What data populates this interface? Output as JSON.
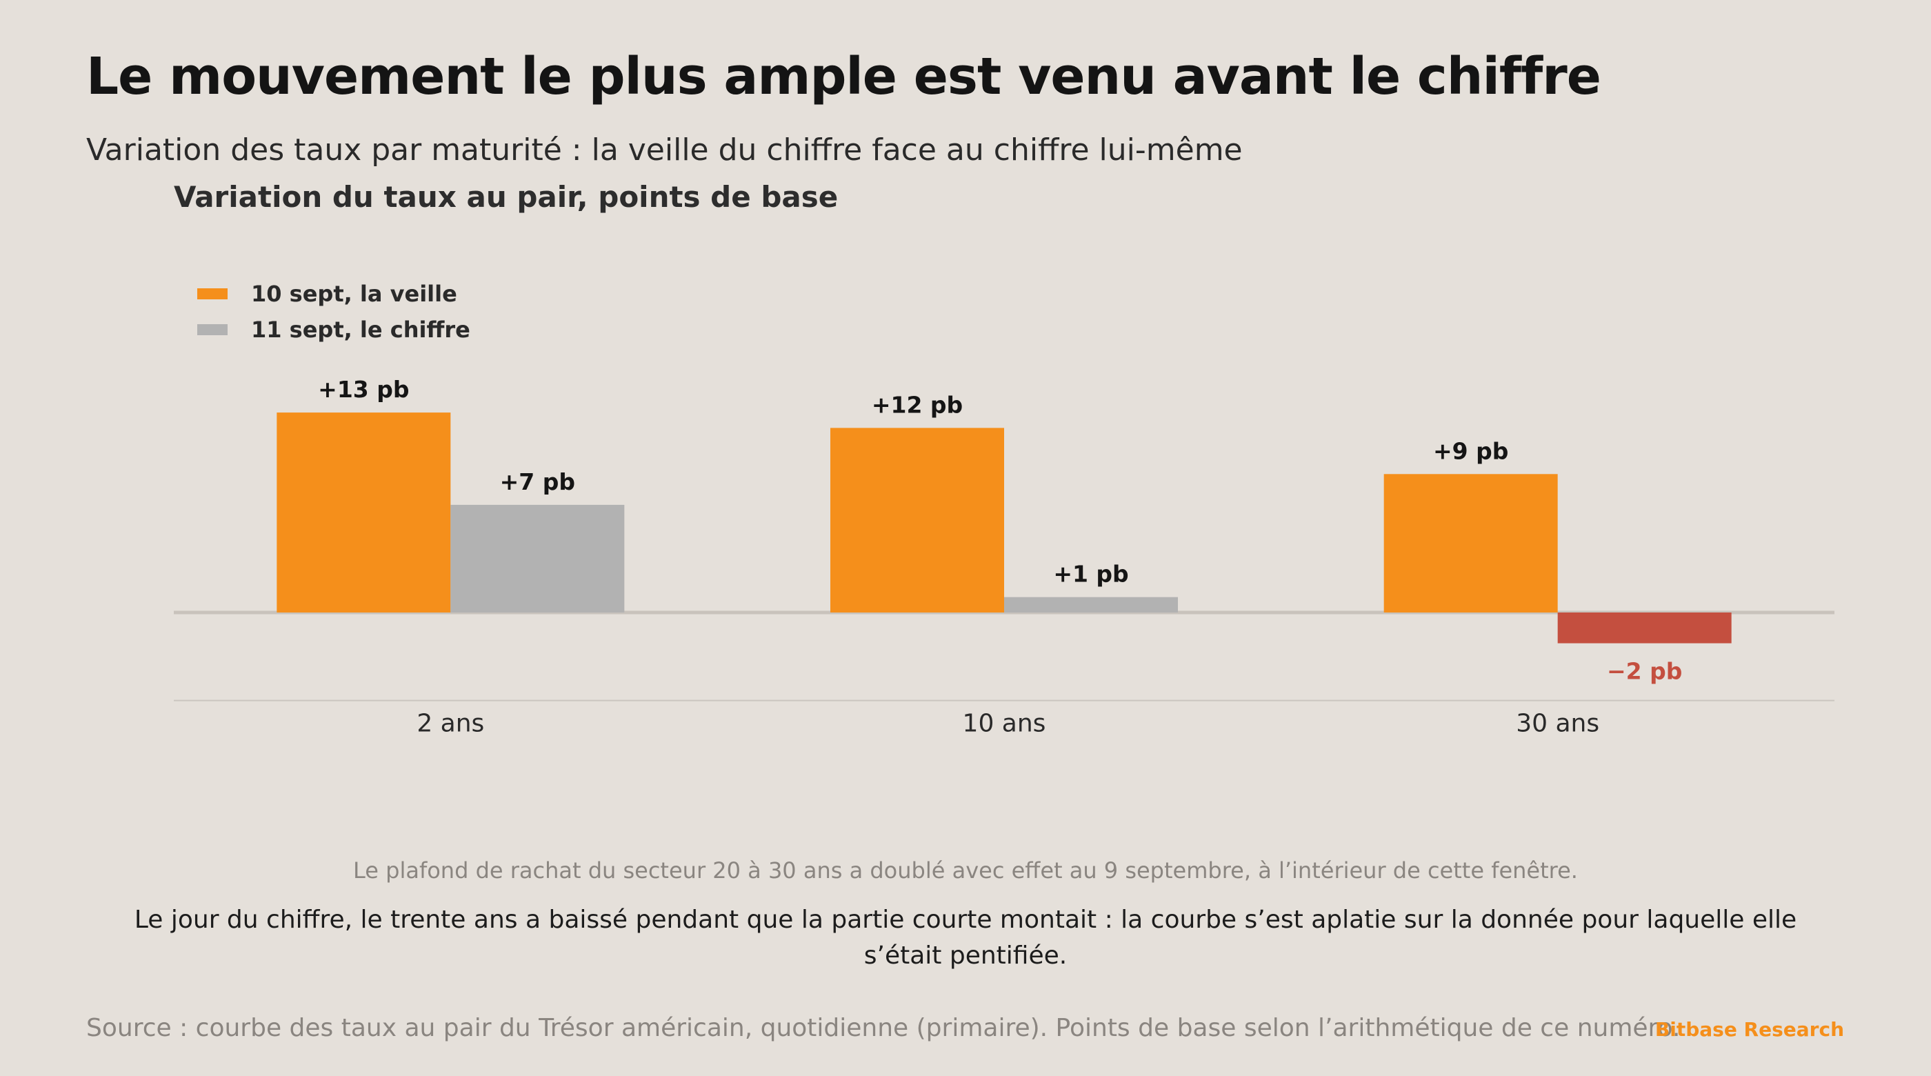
{
  "header": {
    "title": "Le mouvement le plus ample est venu avant le chiffre",
    "subtitle": "Variation des taux par maturité : la veille du chiffre face au chiffre lui-même"
  },
  "chart_data": {
    "type": "bar",
    "ylabel": "Variation du taux au pair, points de base",
    "categories": [
      "2 ans",
      "10 ans",
      "30 ans"
    ],
    "series": [
      {
        "name": "10 sept, la veille",
        "values": [
          13,
          12,
          9
        ],
        "labels": [
          "+13 pb",
          "+12 pb",
          "+9 pb"
        ]
      },
      {
        "name": "11 sept, le chiffre",
        "values": [
          7,
          1,
          -2
        ],
        "labels": [
          "+7 pb",
          "+1 pb",
          "−2 pb"
        ]
      }
    ],
    "ylim": [
      -5.5,
      16
    ],
    "grid": false,
    "legend_position": "top-left",
    "colors": {
      "series_1": "#f58f1b",
      "series_2": "#b2b2b2",
      "negative": "#c44f3f",
      "negative_label": "#c44f3f",
      "label": "#151515",
      "zero_line": "#c9c3bc",
      "baseline": "#cbc5bf"
    }
  },
  "footer": {
    "note": "Le plafond de rachat du secteur 20 à 30 ans a doublé avec effet au 9 septembre, à l’intérieur de cette fenêtre.",
    "takeaway": "Le jour du chiffre, le trente ans a baissé pendant que la partie courte montait : la courbe s’est aplatie sur la donnée pour laquelle elle s’était pentifiée.",
    "source": "Source : courbe des taux au pair du Trésor américain, quotidienne (primaire). Points de base selon l’arithmétique de ce numéro.",
    "brand": "Bitbase Research",
    "brand_color": "#f58f1b"
  }
}
